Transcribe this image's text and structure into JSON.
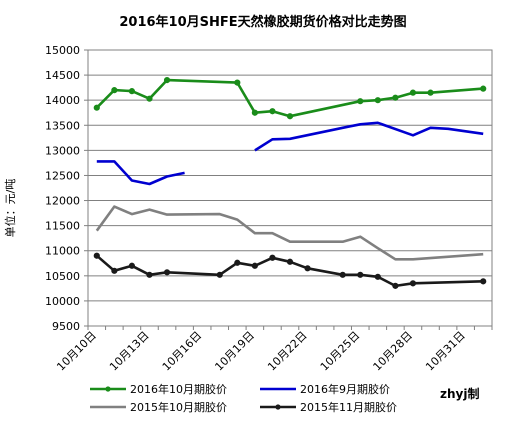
{
  "chart_data": {
    "type": "line",
    "title": "2016年10月SHFE天然橡胶期货价格对比走势图",
    "ylabel": "单位：元/吨",
    "xlabel": "",
    "ylim": [
      9500,
      15000
    ],
    "yticks": [
      9500,
      10000,
      10500,
      11000,
      11500,
      12000,
      12500,
      13000,
      13500,
      14000,
      14500,
      15000
    ],
    "x_dates": [
      "10-10",
      "10-11",
      "10-12",
      "10-13",
      "10-14",
      "10-15",
      "10-16",
      "10-17",
      "10-18",
      "10-19",
      "10-20",
      "10-21",
      "10-22",
      "10-23",
      "10-24",
      "10-25",
      "10-26",
      "10-27",
      "10-28",
      "10-29",
      "10-30",
      "10-31",
      "11-01"
    ],
    "xtick_labels": [
      {
        "date": "10-10",
        "label": "10月10日"
      },
      {
        "date": "10-13",
        "label": "10月13日"
      },
      {
        "date": "10-16",
        "label": "10月16日"
      },
      {
        "date": "10-19",
        "label": "10月19日"
      },
      {
        "date": "10-22",
        "label": "10月22日"
      },
      {
        "date": "10-25",
        "label": "10月25日"
      },
      {
        "date": "10-28",
        "label": "10月28日"
      },
      {
        "date": "10-31",
        "label": "10月31日"
      }
    ],
    "grid": true,
    "legend_position": "bottom",
    "credit": "zhyj制",
    "series": [
      {
        "name": "2016年10月期胶价",
        "color": "#1a8c1a",
        "markers": true,
        "points": [
          [
            "10-10",
            13850
          ],
          [
            "10-11",
            14200
          ],
          [
            "10-12",
            14180
          ],
          [
            "10-13",
            14030
          ],
          [
            "10-14",
            14400
          ],
          [
            "10-18",
            14350
          ],
          [
            "10-19",
            13750
          ],
          [
            "10-20",
            13780
          ],
          [
            "10-21",
            13680
          ],
          [
            "10-25",
            13980
          ],
          [
            "10-26",
            14000
          ],
          [
            "10-27",
            14050
          ],
          [
            "10-28",
            14150
          ],
          [
            "10-29",
            14150
          ],
          [
            "11-01",
            14230
          ]
        ]
      },
      {
        "name": "2016年9月期胶价",
        "color": "#0000d0",
        "markers": false,
        "segments": [
          [
            [
              "10-10",
              12780
            ],
            [
              "10-11",
              12780
            ],
            [
              "10-12",
              12400
            ],
            [
              "10-13",
              12330
            ],
            [
              "10-14",
              12480
            ],
            [
              "10-15",
              12550
            ]
          ],
          [
            [
              "10-19",
              13000
            ],
            [
              "10-20",
              13220
            ],
            [
              "10-21",
              13230
            ],
            [
              "10-24",
              13450
            ],
            [
              "10-25",
              13520
            ],
            [
              "10-26",
              13550
            ],
            [
              "10-28",
              13300
            ],
            [
              "10-29",
              13450
            ],
            [
              "10-30",
              13430
            ],
            [
              "11-01",
              13330
            ]
          ]
        ]
      },
      {
        "name": "2015年10月期胶价",
        "color": "#808080",
        "markers": false,
        "points": [
          [
            "10-10",
            11400
          ],
          [
            "10-11",
            11880
          ],
          [
            "10-12",
            11730
          ],
          [
            "10-13",
            11820
          ],
          [
            "10-14",
            11720
          ],
          [
            "10-17",
            11730
          ],
          [
            "10-18",
            11620
          ],
          [
            "10-19",
            11350
          ],
          [
            "10-20",
            11350
          ],
          [
            "10-21",
            11180
          ],
          [
            "10-24",
            11180
          ],
          [
            "10-25",
            11280
          ],
          [
            "10-26",
            11050
          ],
          [
            "10-27",
            10830
          ],
          [
            "10-28",
            10830
          ],
          [
            "11-01",
            10930
          ]
        ]
      },
      {
        "name": "2015年11月期胶价",
        "color": "#1a1a1a",
        "markers": true,
        "points": [
          [
            "10-10",
            10900
          ],
          [
            "10-11",
            10600
          ],
          [
            "10-12",
            10700
          ],
          [
            "10-13",
            10520
          ],
          [
            "10-14",
            10570
          ],
          [
            "10-17",
            10520
          ],
          [
            "10-18",
            10760
          ],
          [
            "10-19",
            10700
          ],
          [
            "10-20",
            10860
          ],
          [
            "10-21",
            10780
          ],
          [
            "10-22",
            10650
          ],
          [
            "10-24",
            10520
          ],
          [
            "10-25",
            10520
          ],
          [
            "10-26",
            10480
          ],
          [
            "10-27",
            10300
          ],
          [
            "10-28",
            10350
          ],
          [
            "11-01",
            10390
          ]
        ]
      }
    ]
  }
}
